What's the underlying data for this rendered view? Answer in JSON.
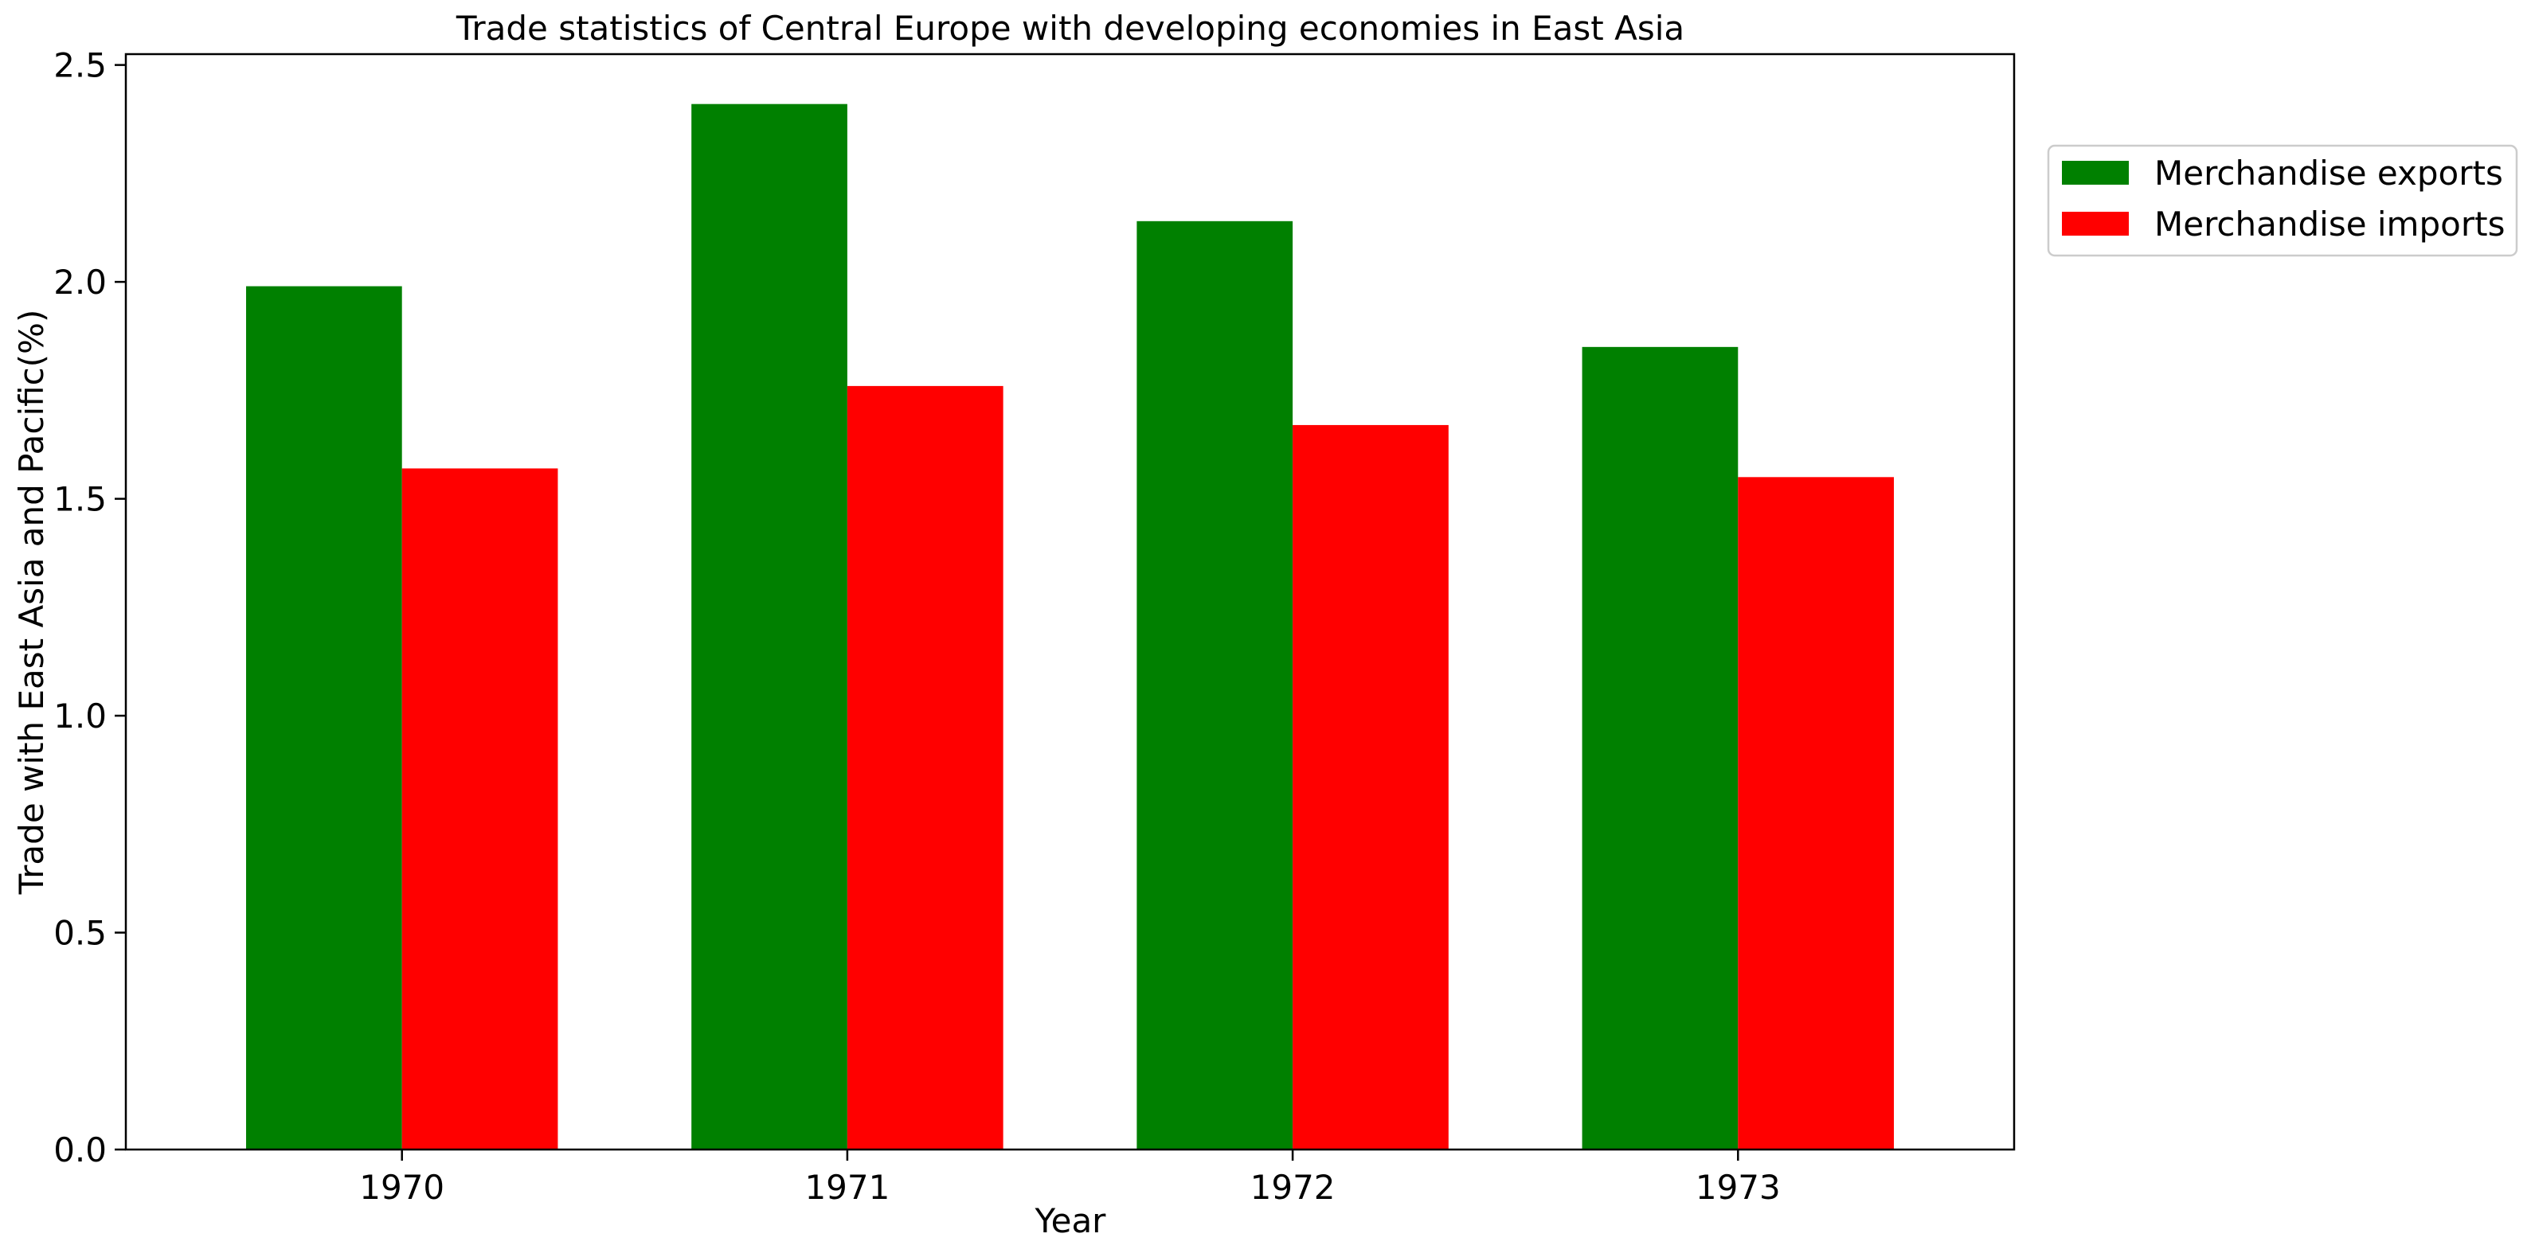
{
  "chart_data": {
    "type": "bar",
    "title": "Trade statistics of Central Europe with developing economies in East Asia",
    "xlabel": "Year",
    "ylabel": "Trade with East Asia and Pacific(%)",
    "categories": [
      "1970",
      "1971",
      "1972",
      "1973"
    ],
    "series": [
      {
        "name": "Merchandise exports",
        "color": "#008000",
        "values": [
          1.99,
          2.41,
          2.14,
          1.85
        ]
      },
      {
        "name": "Merchandise imports",
        "color": "#ff0000",
        "values": [
          1.57,
          1.76,
          1.67,
          1.55
        ]
      }
    ],
    "ylim": [
      0,
      2.525
    ],
    "yticks": [
      0.0,
      0.5,
      1.0,
      1.5,
      2.0,
      2.5
    ],
    "ytick_labels": [
      "0.0",
      "0.5",
      "1.0",
      "1.5",
      "2.0",
      "2.5"
    ],
    "grid": false,
    "legend_position": "outside-top-right"
  }
}
